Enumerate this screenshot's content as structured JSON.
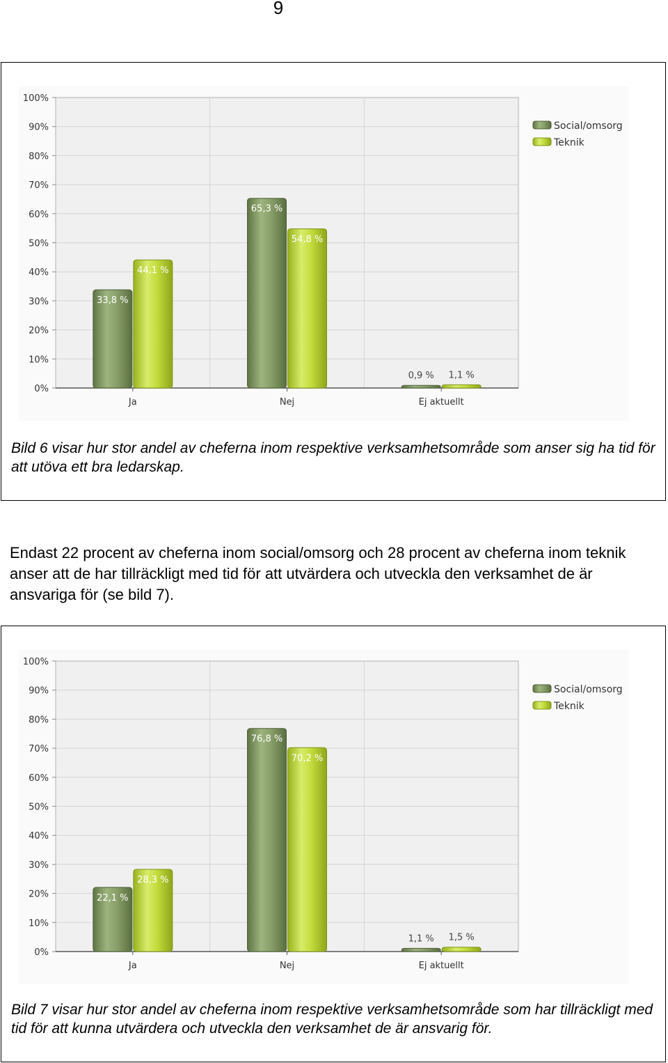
{
  "page_number": "9",
  "paragraph": "Endast 22 procent av cheferna inom social/omsorg och 28 procent av cheferna inom teknik anser att de har tillräckligt med tid för att utvärdera och utveckla den verksamhet de är ansvariga för (se bild 7).",
  "colors": {
    "social": "#8aa06a",
    "teknik": "#c4dc3c",
    "plot_bg": "#f0f0f0",
    "grid": "#d4d4d4"
  },
  "chart_data": [
    {
      "type": "bar",
      "categories": [
        "Ja",
        "Nej",
        "Ej aktuellt"
      ],
      "series": [
        {
          "name": "Social/omsorg",
          "values": [
            33.8,
            65.3,
            0.9
          ],
          "labels": [
            "33,8 %",
            "65,3 %",
            "0,9 %"
          ]
        },
        {
          "name": "Teknik",
          "values": [
            44.1,
            54.8,
            1.1
          ],
          "labels": [
            "44,1 %",
            "54,8 %",
            "1,1 %"
          ]
        }
      ],
      "yticks": [
        "0%",
        "10%",
        "20%",
        "30%",
        "40%",
        "50%",
        "60%",
        "70%",
        "80%",
        "90%",
        "100%"
      ],
      "ylim": [
        0,
        100
      ],
      "legend": "top-right",
      "caption": "Bild 6 visar hur stor andel av cheferna inom respektive verksamhetsområde som anser sig ha tid för att utöva ett bra ledarskap."
    },
    {
      "type": "bar",
      "categories": [
        "Ja",
        "Nej",
        "Ej aktuellt"
      ],
      "series": [
        {
          "name": "Social/omsorg",
          "values": [
            22.1,
            76.8,
            1.1
          ],
          "labels": [
            "22,1 %",
            "76,8 %",
            "1,1 %"
          ]
        },
        {
          "name": "Teknik",
          "values": [
            28.3,
            70.2,
            1.5
          ],
          "labels": [
            "28,3 %",
            "70,2 %",
            "1,5 %"
          ]
        }
      ],
      "yticks": [
        "0%",
        "10%",
        "20%",
        "30%",
        "40%",
        "50%",
        "60%",
        "70%",
        "80%",
        "90%",
        "100%"
      ],
      "ylim": [
        0,
        100
      ],
      "legend": "top-right",
      "caption": "Bild 7 visar hur stor andel av cheferna inom respektive verksamhetsområde som har tillräckligt med tid för att kunna utvärdera och utveckla den verksamhet de är ansvarig för."
    }
  ]
}
